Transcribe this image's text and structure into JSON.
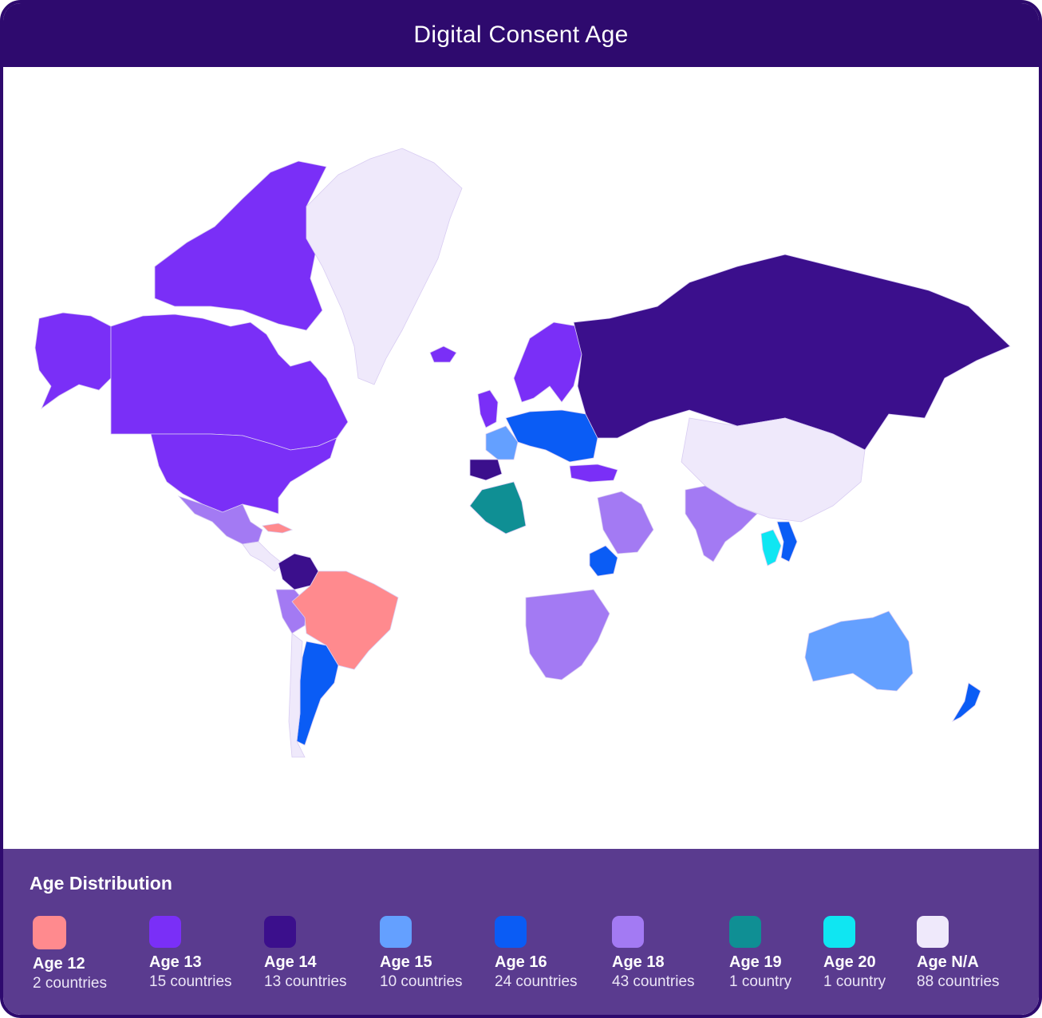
{
  "title": "Digital Consent Age",
  "colors": {
    "frame": "#2e0a6e",
    "legend_bg": "#5a3b8f",
    "age12": "#ff8a8e",
    "age13": "#7a2ff7",
    "age14": "#3b0f8c",
    "age15": "#64a0ff",
    "age16": "#0a5cf5",
    "age18": "#a37af3",
    "age19": "#0f8f94",
    "age20": "#0fe6f2",
    "agena": "#efe9fb"
  },
  "legend": {
    "title": "Age Distribution",
    "items": [
      {
        "label": "Age 12",
        "count": "2 countries",
        "color": "#ff8a8e"
      },
      {
        "label": "Age 13",
        "count": "15 countries",
        "color": "#7a2ff7"
      },
      {
        "label": "Age 14",
        "count": "13 countries",
        "color": "#3b0f8c"
      },
      {
        "label": "Age 15",
        "count": "10 countries",
        "color": "#64a0ff"
      },
      {
        "label": "Age 16",
        "count": "24 countries",
        "color": "#0a5cf5"
      },
      {
        "label": "Age 18",
        "count": "43 countries",
        "color": "#a37af3"
      },
      {
        "label": "Age 19",
        "count": "1 country",
        "color": "#0f8f94"
      },
      {
        "label": "Age 20",
        "count": "1 country",
        "color": "#0fe6f2"
      },
      {
        "label": "Age N/A",
        "count": "88 countries",
        "color": "#efe9fb"
      }
    ]
  },
  "regions": [
    {
      "name": "canada",
      "age": "13"
    },
    {
      "name": "united-states",
      "age": "13"
    },
    {
      "name": "alaska",
      "age": "13"
    },
    {
      "name": "canadian-arctic",
      "age": "13"
    },
    {
      "name": "greenland",
      "age": "N/A"
    },
    {
      "name": "mexico",
      "age": "18"
    },
    {
      "name": "central-america",
      "age": "N/A"
    },
    {
      "name": "colombia",
      "age": "14"
    },
    {
      "name": "brazil",
      "age": "12"
    },
    {
      "name": "cuba",
      "age": "12"
    },
    {
      "name": "peru",
      "age": "18"
    },
    {
      "name": "argentina",
      "age": "16"
    },
    {
      "name": "chile",
      "age": "N/A"
    },
    {
      "name": "russia",
      "age": "14"
    },
    {
      "name": "china",
      "age": "N/A"
    },
    {
      "name": "india",
      "age": "18"
    },
    {
      "name": "australia",
      "age": "15"
    },
    {
      "name": "new-zealand",
      "age": "16"
    },
    {
      "name": "algeria",
      "age": "19"
    },
    {
      "name": "thailand",
      "age": "20"
    },
    {
      "name": "vietnam",
      "age": "16"
    },
    {
      "name": "ethiopia",
      "age": "16"
    },
    {
      "name": "france",
      "age": "15"
    },
    {
      "name": "spain",
      "age": "14"
    },
    {
      "name": "uk",
      "age": "13"
    },
    {
      "name": "scandinavia",
      "age": "13"
    },
    {
      "name": "central-europe",
      "age": "16"
    },
    {
      "name": "turkey",
      "age": "13"
    },
    {
      "name": "saudi-arabia",
      "age": "18"
    },
    {
      "name": "southern-africa",
      "age": "18"
    },
    {
      "name": "iceland",
      "age": "13"
    }
  ]
}
